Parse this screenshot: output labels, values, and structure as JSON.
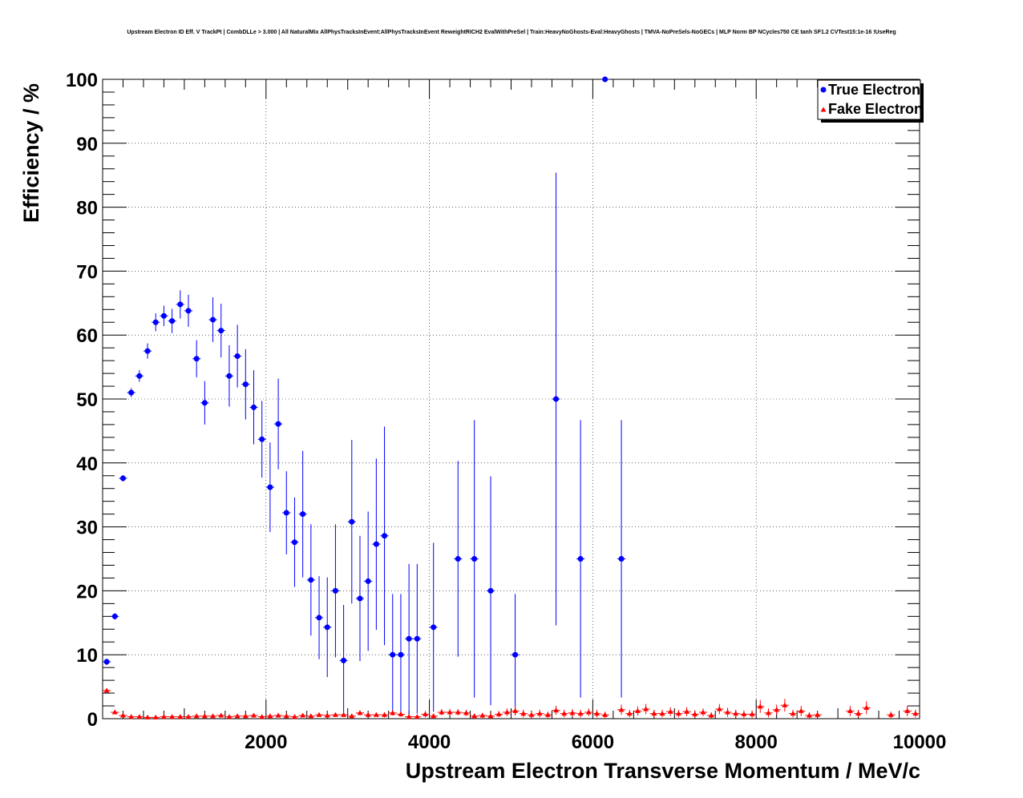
{
  "chart_data": {
    "type": "scatter",
    "title": "Upstream Electron ID Eff. V TrackPt | CombDLLe > 3.000 | All NaturalMix AllPhysTracksInEvent:AllPhysTracksInEvent ReweightRICH2 EvalWithPreSel | Train:HeavyNoGhosts-Eval:HeavyGhosts | TMVA-NoPreSels-NoGECs | MLP Norm BP NCycles750 CE tanh SF1.2 CVTest15:1e-16 !UseReg",
    "xlabel": "Upstream Electron Transverse Momentum / MeV/c",
    "ylabel": "Efficiency / %",
    "xlim": [
      0,
      10000
    ],
    "ylim": [
      0,
      100
    ],
    "xticks": [
      2000,
      4000,
      6000,
      8000,
      10000
    ],
    "yticks": [
      0,
      10,
      20,
      30,
      40,
      50,
      60,
      70,
      80,
      90,
      100
    ],
    "grid": true,
    "legend_position": "top-right",
    "bin_width": 100,
    "series": [
      {
        "name": "True Electron",
        "color": "#0000ff",
        "marker": "circle",
        "points": [
          {
            "x": 50,
            "y": 8.9,
            "err": 0.5
          },
          {
            "x": 150,
            "y": 16.0,
            "err": 0.5
          },
          {
            "x": 250,
            "y": 37.6,
            "err": 0.5
          },
          {
            "x": 350,
            "y": 51.0,
            "err": 0.7
          },
          {
            "x": 450,
            "y": 53.6,
            "err": 0.9
          },
          {
            "x": 550,
            "y": 57.5,
            "err": 1.2
          },
          {
            "x": 650,
            "y": 62.0,
            "err": 1.4
          },
          {
            "x": 750,
            "y": 63.0,
            "err": 1.6
          },
          {
            "x": 850,
            "y": 62.2,
            "err": 1.9
          },
          {
            "x": 950,
            "y": 64.8,
            "err": 2.2
          },
          {
            "x": 1050,
            "y": 63.8,
            "err": 2.5
          },
          {
            "x": 1150,
            "y": 56.3,
            "err": 2.9
          },
          {
            "x": 1250,
            "y": 49.4,
            "err": 3.4
          },
          {
            "x": 1350,
            "y": 62.4,
            "err": 3.5
          },
          {
            "x": 1450,
            "y": 60.7,
            "err": 4.2
          },
          {
            "x": 1550,
            "y": 53.6,
            "err": 4.8
          },
          {
            "x": 1650,
            "y": 56.7,
            "err": 4.9
          },
          {
            "x": 1750,
            "y": 52.3,
            "err": 5.5
          },
          {
            "x": 1850,
            "y": 48.7,
            "err": 5.8
          },
          {
            "x": 1950,
            "y": 43.7,
            "err": 6.0
          },
          {
            "x": 2050,
            "y": 36.2,
            "err": 7.0
          },
          {
            "x": 2150,
            "y": 46.1,
            "err": 7.1
          },
          {
            "x": 2250,
            "y": 32.2,
            "err": 6.5
          },
          {
            "x": 2350,
            "y": 27.6,
            "err": 7.0
          },
          {
            "x": 2450,
            "y": 32.0,
            "err": 9.9
          },
          {
            "x": 2550,
            "y": 21.7,
            "err": 8.7
          },
          {
            "x": 2650,
            "y": 15.8,
            "err": 6.5
          },
          {
            "x": 2750,
            "y": 14.3,
            "err": 7.8
          },
          {
            "x": 2850,
            "y": 20.0,
            "err": 10.4
          },
          {
            "x": 2950,
            "y": 9.1,
            "err": 8.7
          },
          {
            "x": 3050,
            "y": 30.8,
            "err": 12.8
          },
          {
            "x": 3150,
            "y": 18.8,
            "err": 9.8
          },
          {
            "x": 3250,
            "y": 21.5,
            "err": 10.9
          },
          {
            "x": 3350,
            "y": 27.3,
            "err": 13.4
          },
          {
            "x": 3450,
            "y": 28.6,
            "err": 17.1
          },
          {
            "x": 3550,
            "y": 10.0,
            "err": 9.5
          },
          {
            "x": 3650,
            "y": 10.0,
            "err": 9.5
          },
          {
            "x": 3750,
            "y": 12.5,
            "err": 11.7
          },
          {
            "x": 3850,
            "y": 12.5,
            "err": 11.7
          },
          {
            "x": 4050,
            "y": 14.3,
            "err": 13.2
          },
          {
            "x": 4350,
            "y": 25.0,
            "err": 15.3
          },
          {
            "x": 4550,
            "y": 25.0,
            "err": 21.7
          },
          {
            "x": 4750,
            "y": 20.0,
            "err": 17.9
          },
          {
            "x": 5050,
            "y": 10.0,
            "err": 9.5
          },
          {
            "x": 5550,
            "y": 50.0,
            "err": 35.4
          },
          {
            "x": 5850,
            "y": 25.0,
            "err": 21.7
          },
          {
            "x": 6150,
            "y": 100.0,
            "err": 0
          },
          {
            "x": 6350,
            "y": 25.0,
            "err": 21.7
          }
        ]
      },
      {
        "name": "Fake Electron",
        "color": "#ff0000",
        "marker": "triangle",
        "points": [
          {
            "x": 50,
            "y": 4.4,
            "err": 0.2
          },
          {
            "x": 150,
            "y": 1.0,
            "err": 0.1
          },
          {
            "x": 250,
            "y": 0.5,
            "err": 0.1
          },
          {
            "x": 350,
            "y": 0.3,
            "err": 0.1
          },
          {
            "x": 450,
            "y": 0.3,
            "err": 0.1
          },
          {
            "x": 550,
            "y": 0.2,
            "err": 0.1
          },
          {
            "x": 650,
            "y": 0.2,
            "err": 0.1
          },
          {
            "x": 750,
            "y": 0.3,
            "err": 0.1
          },
          {
            "x": 850,
            "y": 0.3,
            "err": 0.1
          },
          {
            "x": 950,
            "y": 0.3,
            "err": 0.1
          },
          {
            "x": 1050,
            "y": 0.3,
            "err": 0.1
          },
          {
            "x": 1150,
            "y": 0.4,
            "err": 0.1
          },
          {
            "x": 1250,
            "y": 0.4,
            "err": 0.1
          },
          {
            "x": 1350,
            "y": 0.4,
            "err": 0.1
          },
          {
            "x": 1450,
            "y": 0.5,
            "err": 0.2
          },
          {
            "x": 1550,
            "y": 0.3,
            "err": 0.1
          },
          {
            "x": 1650,
            "y": 0.4,
            "err": 0.2
          },
          {
            "x": 1750,
            "y": 0.4,
            "err": 0.2
          },
          {
            "x": 1850,
            "y": 0.5,
            "err": 0.2
          },
          {
            "x": 1950,
            "y": 0.3,
            "err": 0.2
          },
          {
            "x": 2050,
            "y": 0.4,
            "err": 0.2
          },
          {
            "x": 2150,
            "y": 0.5,
            "err": 0.2
          },
          {
            "x": 2250,
            "y": 0.4,
            "err": 0.2
          },
          {
            "x": 2350,
            "y": 0.3,
            "err": 0.2
          },
          {
            "x": 2450,
            "y": 0.5,
            "err": 0.2
          },
          {
            "x": 2550,
            "y": 0.4,
            "err": 0.2
          },
          {
            "x": 2650,
            "y": 0.6,
            "err": 0.3
          },
          {
            "x": 2750,
            "y": 0.5,
            "err": 0.3
          },
          {
            "x": 2850,
            "y": 0.6,
            "err": 0.3
          },
          {
            "x": 2950,
            "y": 0.6,
            "err": 0.3
          },
          {
            "x": 3050,
            "y": 0.4,
            "err": 0.3
          },
          {
            "x": 3150,
            "y": 0.9,
            "err": 0.4
          },
          {
            "x": 3250,
            "y": 0.6,
            "err": 0.3
          },
          {
            "x": 3350,
            "y": 0.6,
            "err": 0.3
          },
          {
            "x": 3450,
            "y": 0.6,
            "err": 0.4
          },
          {
            "x": 3550,
            "y": 0.9,
            "err": 0.4
          },
          {
            "x": 3650,
            "y": 0.7,
            "err": 0.4
          },
          {
            "x": 3750,
            "y": 0.3,
            "err": 0.3
          },
          {
            "x": 3850,
            "y": 0.3,
            "err": 0.3
          },
          {
            "x": 3950,
            "y": 0.7,
            "err": 0.5
          },
          {
            "x": 4050,
            "y": 0.4,
            "err": 0.4
          },
          {
            "x": 4150,
            "y": 1.0,
            "err": 0.5
          },
          {
            "x": 4250,
            "y": 1.0,
            "err": 0.5
          },
          {
            "x": 4350,
            "y": 1.0,
            "err": 0.5
          },
          {
            "x": 4450,
            "y": 0.9,
            "err": 0.5
          },
          {
            "x": 4550,
            "y": 0.4,
            "err": 0.4
          },
          {
            "x": 4650,
            "y": 0.5,
            "err": 0.4
          },
          {
            "x": 4750,
            "y": 0.4,
            "err": 0.4
          },
          {
            "x": 4850,
            "y": 0.7,
            "err": 0.5
          },
          {
            "x": 4950,
            "y": 1.0,
            "err": 0.6
          },
          {
            "x": 5050,
            "y": 1.2,
            "err": 0.7
          },
          {
            "x": 5150,
            "y": 0.8,
            "err": 0.6
          },
          {
            "x": 5250,
            "y": 0.6,
            "err": 0.5
          },
          {
            "x": 5350,
            "y": 0.8,
            "err": 0.6
          },
          {
            "x": 5450,
            "y": 0.6,
            "err": 0.5
          },
          {
            "x": 5550,
            "y": 1.3,
            "err": 0.7
          },
          {
            "x": 5650,
            "y": 0.8,
            "err": 0.6
          },
          {
            "x": 5750,
            "y": 0.9,
            "err": 0.6
          },
          {
            "x": 5850,
            "y": 0.8,
            "err": 0.6
          },
          {
            "x": 5950,
            "y": 1.0,
            "err": 0.6
          },
          {
            "x": 6050,
            "y": 0.8,
            "err": 0.6
          },
          {
            "x": 6150,
            "y": 0.6,
            "err": 0.5
          },
          {
            "x": 6350,
            "y": 1.4,
            "err": 0.8
          },
          {
            "x": 6450,
            "y": 0.8,
            "err": 0.6
          },
          {
            "x": 6550,
            "y": 1.2,
            "err": 0.7
          },
          {
            "x": 6650,
            "y": 1.5,
            "err": 0.8
          },
          {
            "x": 6750,
            "y": 0.8,
            "err": 0.6
          },
          {
            "x": 6850,
            "y": 0.8,
            "err": 0.6
          },
          {
            "x": 6950,
            "y": 1.1,
            "err": 0.7
          },
          {
            "x": 7050,
            "y": 0.8,
            "err": 0.6
          },
          {
            "x": 7150,
            "y": 1.1,
            "err": 0.7
          },
          {
            "x": 7250,
            "y": 0.7,
            "err": 0.6
          },
          {
            "x": 7350,
            "y": 1.0,
            "err": 0.6
          },
          {
            "x": 7450,
            "y": 0.5,
            "err": 0.5
          },
          {
            "x": 7550,
            "y": 1.5,
            "err": 0.8
          },
          {
            "x": 7650,
            "y": 1.0,
            "err": 0.7
          },
          {
            "x": 7750,
            "y": 0.8,
            "err": 0.6
          },
          {
            "x": 7850,
            "y": 0.7,
            "err": 0.6
          },
          {
            "x": 7950,
            "y": 0.7,
            "err": 0.6
          },
          {
            "x": 8050,
            "y": 1.9,
            "err": 1.0
          },
          {
            "x": 8150,
            "y": 0.9,
            "err": 0.7
          },
          {
            "x": 8250,
            "y": 1.4,
            "err": 0.8
          },
          {
            "x": 8350,
            "y": 2.1,
            "err": 1.0
          },
          {
            "x": 8450,
            "y": 0.8,
            "err": 0.6
          },
          {
            "x": 8550,
            "y": 1.2,
            "err": 0.8
          },
          {
            "x": 8650,
            "y": 0.5,
            "err": 0.5
          },
          {
            "x": 8750,
            "y": 0.6,
            "err": 0.5
          },
          {
            "x": 9150,
            "y": 1.2,
            "err": 0.8
          },
          {
            "x": 9250,
            "y": 0.8,
            "err": 0.6
          },
          {
            "x": 9350,
            "y": 1.7,
            "err": 1.0
          },
          {
            "x": 9650,
            "y": 0.6,
            "err": 0.5
          },
          {
            "x": 9850,
            "y": 1.2,
            "err": 0.8
          },
          {
            "x": 9950,
            "y": 0.8,
            "err": 0.6
          }
        ]
      }
    ]
  }
}
